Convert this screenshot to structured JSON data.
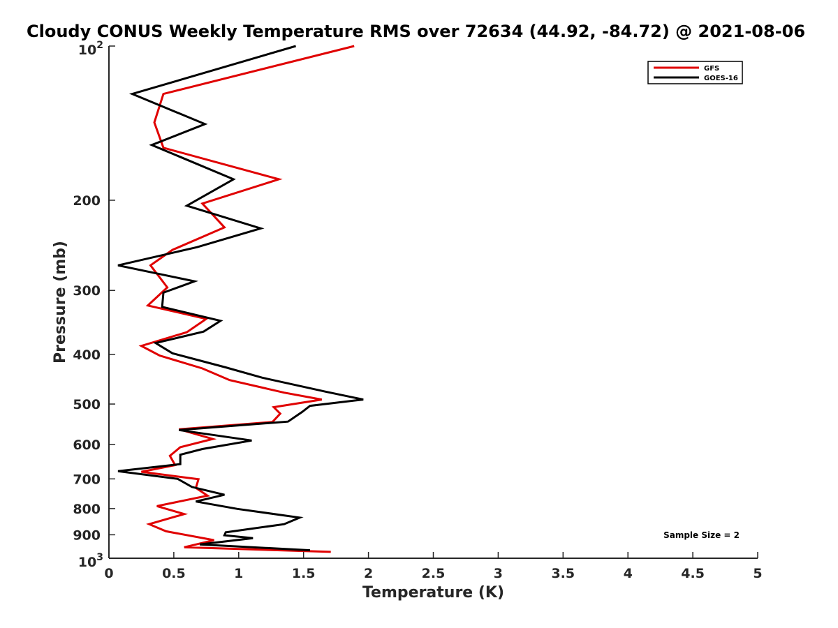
{
  "chart_data": {
    "type": "line",
    "title": "Cloudy CONUS Weekly Temperature RMS over 72634 (44.92, -84.72) @ 2021-08-06",
    "xlabel": "Temperature (K)",
    "ylabel": "Pressure (mb)",
    "xlim": [
      0,
      5
    ],
    "ylim": [
      100,
      1000
    ],
    "yscale": "log",
    "y_reversed": true,
    "x_ticks": [
      "0",
      "0.5",
      "1",
      "1.5",
      "2",
      "2.5",
      "3",
      "3.5",
      "4",
      "4.5",
      "5"
    ],
    "y_ticks": [
      {
        "value": 100,
        "base": "10",
        "exp": "2"
      },
      {
        "value": 200,
        "label": "200"
      },
      {
        "value": 300,
        "label": "300"
      },
      {
        "value": 400,
        "label": "400"
      },
      {
        "value": 500,
        "label": "500"
      },
      {
        "value": 600,
        "label": "600"
      },
      {
        "value": 700,
        "label": "700"
      },
      {
        "value": 800,
        "label": "800"
      },
      {
        "value": 900,
        "label": "900"
      },
      {
        "value": 1000,
        "base": "10",
        "exp": "3"
      }
    ],
    "grid": false,
    "legend_position": "top-right",
    "annotation": "Sample Size = 2",
    "series": [
      {
        "name": "GFS",
        "color": "#e00000",
        "points": [
          [
            1.89,
            100
          ],
          [
            0.42,
            124
          ],
          [
            0.35,
            141
          ],
          [
            0.42,
            158
          ],
          [
            1.31,
            182
          ],
          [
            0.72,
            203
          ],
          [
            0.89,
            226
          ],
          [
            0.49,
            250
          ],
          [
            0.32,
            268
          ],
          [
            0.45,
            296
          ],
          [
            0.3,
            321
          ],
          [
            0.75,
            341
          ],
          [
            0.6,
            362
          ],
          [
            0.25,
            385
          ],
          [
            0.39,
            402
          ],
          [
            0.72,
            426
          ],
          [
            0.93,
            449
          ],
          [
            1.35,
            475
          ],
          [
            1.64,
            490
          ],
          [
            1.27,
            507
          ],
          [
            1.32,
            522
          ],
          [
            1.26,
            542
          ],
          [
            0.54,
            560
          ],
          [
            0.8,
            585
          ],
          [
            0.55,
            607
          ],
          [
            0.47,
            631
          ],
          [
            0.51,
            658
          ],
          [
            0.25,
            678
          ],
          [
            0.69,
            701
          ],
          [
            0.67,
            729
          ],
          [
            0.76,
            755
          ],
          [
            0.37,
            791
          ],
          [
            0.58,
            820
          ],
          [
            0.31,
            858
          ],
          [
            0.44,
            886
          ],
          [
            0.81,
            922
          ],
          [
            0.58,
            952
          ],
          [
            1.71,
            972
          ]
        ]
      },
      {
        "name": "GOES-16",
        "color": "#000000",
        "points": [
          [
            1.44,
            100
          ],
          [
            0.18,
            124
          ],
          [
            0.74,
            142
          ],
          [
            0.33,
            156
          ],
          [
            0.96,
            182
          ],
          [
            0.6,
            205
          ],
          [
            1.17,
            227
          ],
          [
            0.68,
            247
          ],
          [
            0.07,
            268
          ],
          [
            0.66,
            288
          ],
          [
            0.42,
            303
          ],
          [
            0.41,
            323
          ],
          [
            0.86,
            344
          ],
          [
            0.73,
            361
          ],
          [
            0.36,
            380
          ],
          [
            0.49,
            398
          ],
          [
            0.9,
            424
          ],
          [
            1.18,
            444
          ],
          [
            1.67,
            473
          ],
          [
            1.96,
            490
          ],
          [
            1.55,
            504
          ],
          [
            1.49,
            518
          ],
          [
            1.38,
            541
          ],
          [
            0.54,
            562
          ],
          [
            1.1,
            589
          ],
          [
            0.72,
            612
          ],
          [
            0.55,
            628
          ],
          [
            0.55,
            655
          ],
          [
            0.07,
            676
          ],
          [
            0.53,
            700
          ],
          [
            0.64,
            726
          ],
          [
            0.89,
            752
          ],
          [
            0.67,
            775
          ],
          [
            0.99,
            801
          ],
          [
            1.47,
            833
          ],
          [
            1.35,
            858
          ],
          [
            0.9,
            890
          ],
          [
            0.89,
            902
          ],
          [
            1.11,
            914
          ],
          [
            0.7,
            940
          ],
          [
            1.55,
            965
          ]
        ]
      }
    ]
  }
}
